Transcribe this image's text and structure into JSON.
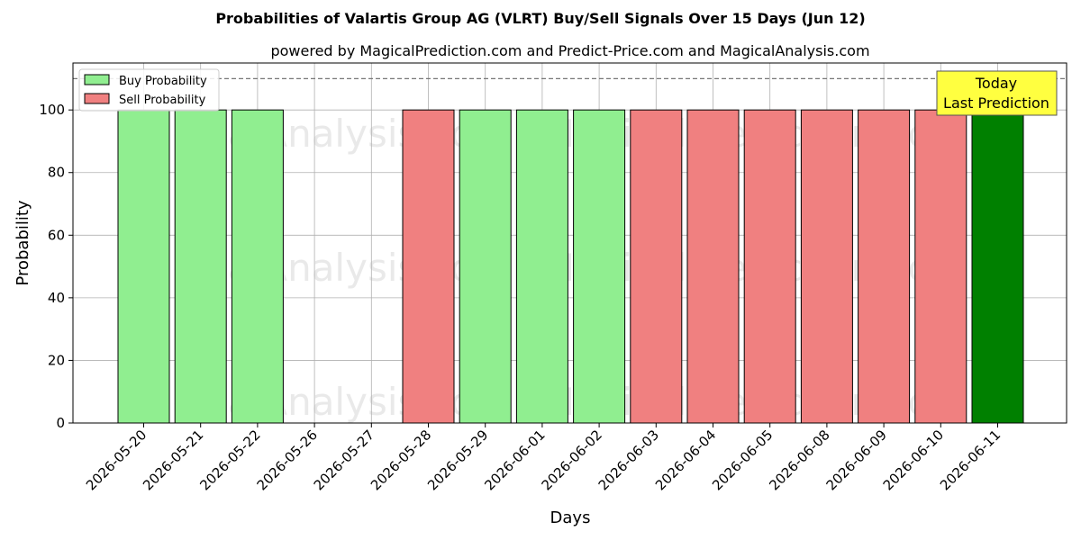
{
  "chart_data": {
    "type": "bar",
    "title": "Probabilities of Valartis Group AG (VLRT) Buy/Sell Signals Over 15 Days (Jun 12)",
    "subtitle": "powered by MagicalPrediction.com and Predict-Price.com and MagicalAnalysis.com",
    "xlabel": "Days",
    "ylabel": "Probability",
    "ylim": [
      0,
      115
    ],
    "yticks": [
      0,
      20,
      40,
      60,
      80,
      100
    ],
    "grid": true,
    "legend_position": "top-left",
    "reference_line": 110,
    "categories": [
      "2026-05-20",
      "2026-05-21",
      "2026-05-22",
      "2026-05-26",
      "2026-05-27",
      "2026-05-28",
      "2026-05-29",
      "2026-06-01",
      "2026-06-02",
      "2026-06-03",
      "2026-06-04",
      "2026-06-05",
      "2026-06-08",
      "2026-06-09",
      "2026-06-10",
      "2026-06-11"
    ],
    "series": [
      {
        "name": "Buy Probability",
        "color": "#90ee90",
        "values": [
          100,
          100,
          100,
          0,
          0,
          0,
          100,
          100,
          100,
          0,
          0,
          0,
          0,
          0,
          0,
          0
        ]
      },
      {
        "name": "Sell Probability",
        "color": "#f08080",
        "values": [
          0,
          0,
          0,
          0,
          0,
          100,
          0,
          0,
          0,
          100,
          100,
          100,
          100,
          100,
          100,
          0
        ]
      }
    ],
    "today_bar": {
      "category": "2026-06-11",
      "value": 100,
      "color": "#008000"
    },
    "annotation": {
      "line1": "Today",
      "line2": "Last Prediction",
      "color": "#ffff40"
    },
    "watermarks": [
      "MagicalAnalysis.com",
      "MagicalPrediction.com"
    ]
  }
}
